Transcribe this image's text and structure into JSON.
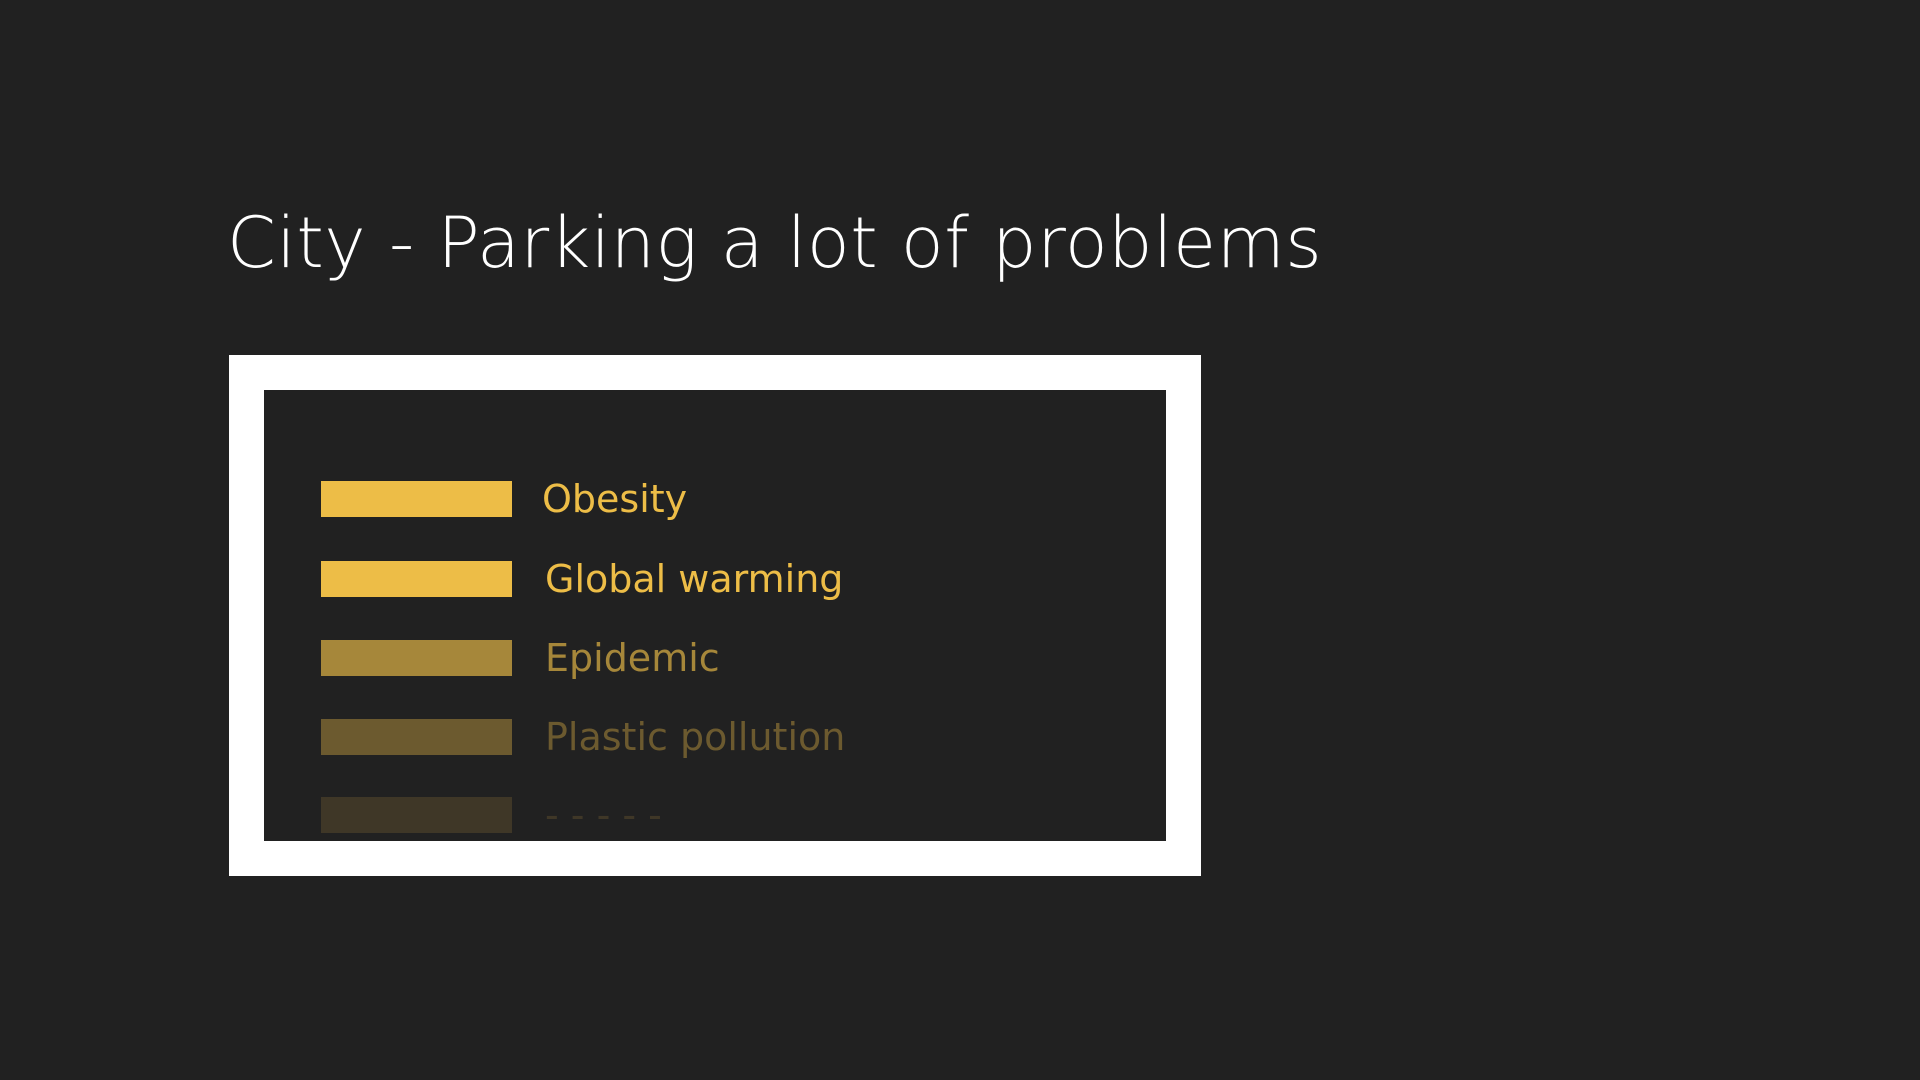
{
  "slide": {
    "title": "City - Parking a lot of problems",
    "title_color": "#ffffff",
    "background_color": "#212121"
  },
  "legend": {
    "frame_color": "#ffffff",
    "items": [
      {
        "label": "Obesity",
        "color": "#edbd47"
      },
      {
        "label": "Global warming",
        "color": "#edbd47"
      },
      {
        "label": "Epidemic",
        "color": "#a6873a"
      },
      {
        "label": "Plastic pollution",
        "color": "#6c5a2f"
      },
      {
        "label": "- - - - -",
        "color": "#3f3727"
      }
    ]
  }
}
